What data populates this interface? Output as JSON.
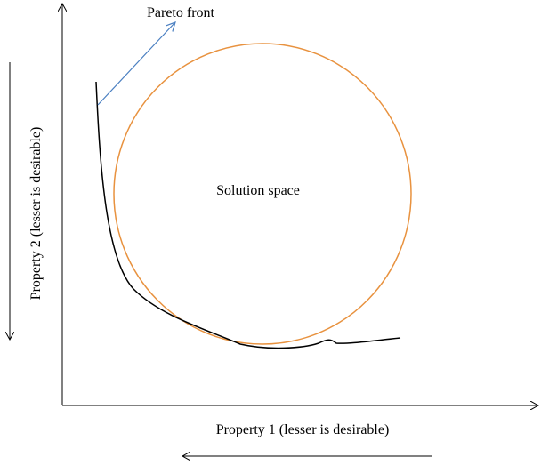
{
  "diagram": {
    "pareto_label": "Pareto front",
    "region_label": "Solution space",
    "x_axis_label": "Property 1 (lesser is desirable)",
    "y_axis_label": "Property 2 (lesser is desirable)"
  }
}
